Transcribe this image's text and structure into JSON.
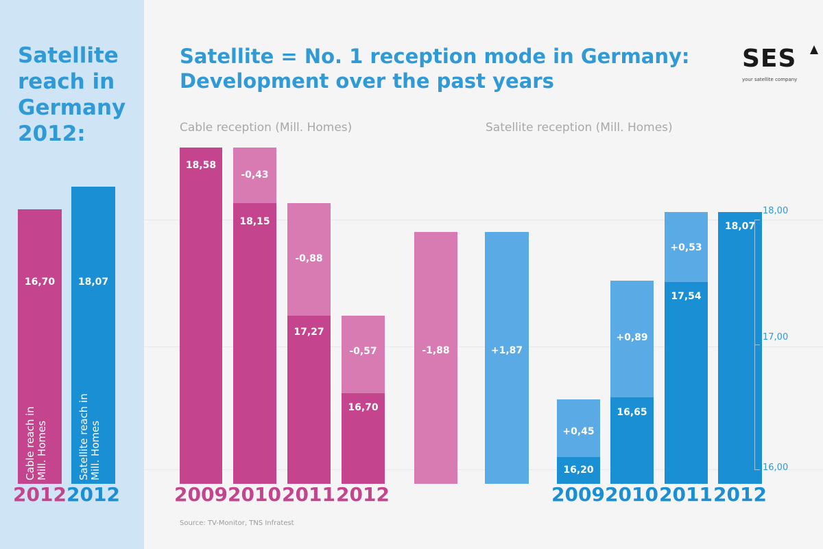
{
  "left": {
    "title_lines": [
      "Satellite",
      "reach in",
      "Germany",
      "2012:"
    ],
    "bars": [
      {
        "value": "16,70",
        "vertical_text": "Cable reach in\nMill. Homes",
        "year": "2012",
        "color": "#c4448e"
      },
      {
        "value": "18,07",
        "vertical_text": "Satellite reach in\nMill. Homes",
        "year": "2012",
        "color": "#1a8fd3"
      }
    ]
  },
  "main": {
    "title_lines": [
      "Satellite = No. 1 reception mode in Germany:",
      "Development over the past years"
    ],
    "cable_subtitle": "Cable reception (Mill. Homes)",
    "satellite_subtitle": "Satellite reception (Mill. Homes)",
    "source": "Source: TV-Monitor, TNS Infratest"
  },
  "logo": {
    "text": "SES",
    "tagline": "your satellite company"
  },
  "colors": {
    "cable_dark": "#c4448e",
    "cable_light": "#d77bb2",
    "sat_dark": "#1a8fd3",
    "sat_light": "#5aaae6",
    "title_blue": "#2f9ad6"
  },
  "chart_data": {
    "type": "bar",
    "cable": {
      "years": [
        "2009",
        "2010",
        "2011",
        "2012"
      ],
      "values": [
        "18,58",
        "18,15",
        "17,27",
        "16,70"
      ],
      "changes": [
        "",
        "-0,43",
        "-0,88",
        "-0,57"
      ]
    },
    "totals": {
      "cable_change": "-1,88",
      "satellite_change": "+1,87"
    },
    "satellite": {
      "years": [
        "2009",
        "2010",
        "2011",
        "2012"
      ],
      "values": [
        "16,20",
        "16,65",
        "17,54",
        "18,07"
      ],
      "changes": [
        "+0,45",
        "+0,89",
        "+0,53",
        ""
      ],
      "y_ticks": [
        "16,00",
        "17,00",
        "18,00"
      ],
      "ylim": [
        16,
        18
      ]
    }
  }
}
